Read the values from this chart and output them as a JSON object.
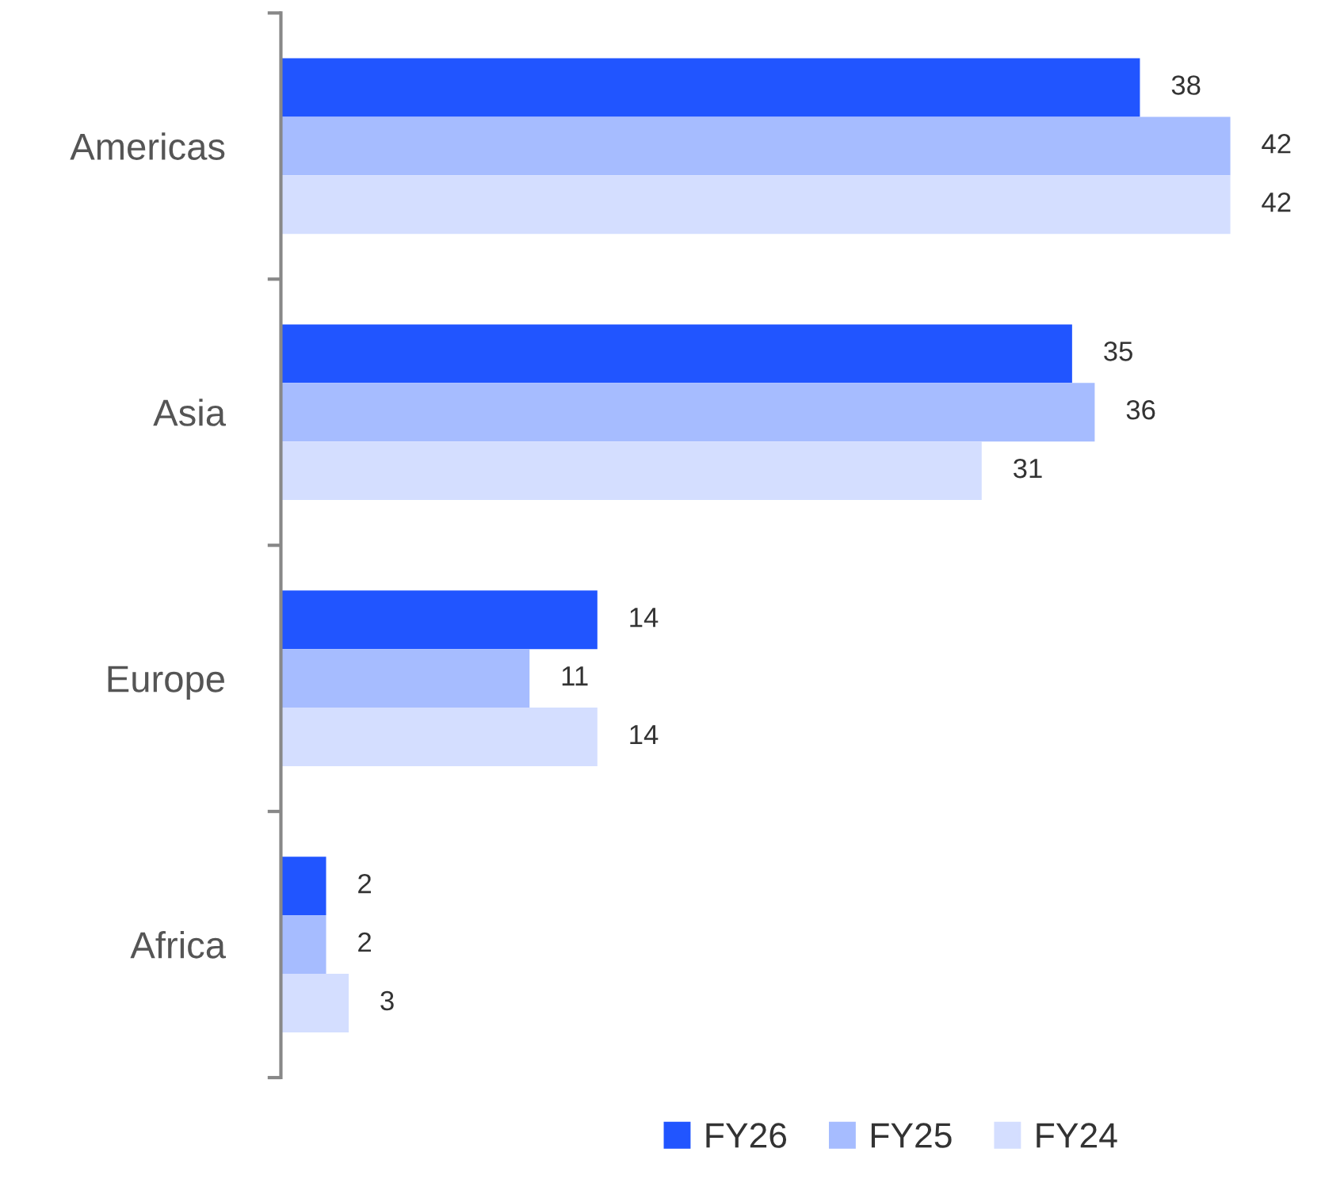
{
  "chart_data": {
    "type": "bar",
    "orientation": "horizontal",
    "data_labels": true,
    "legend": "bottom",
    "grid": false,
    "categories": [
      "Americas",
      "Asia",
      "Europe",
      "Africa"
    ],
    "series": [
      {
        "name": "FY26",
        "color": "#2155ff",
        "values": [
          38,
          35,
          14,
          2
        ]
      },
      {
        "name": "FY25",
        "color": "#a6bcff",
        "values": [
          42,
          36,
          11,
          2
        ]
      },
      {
        "name": "FY24",
        "color": "#d4deff",
        "values": [
          42,
          31,
          14,
          3
        ]
      }
    ]
  }
}
